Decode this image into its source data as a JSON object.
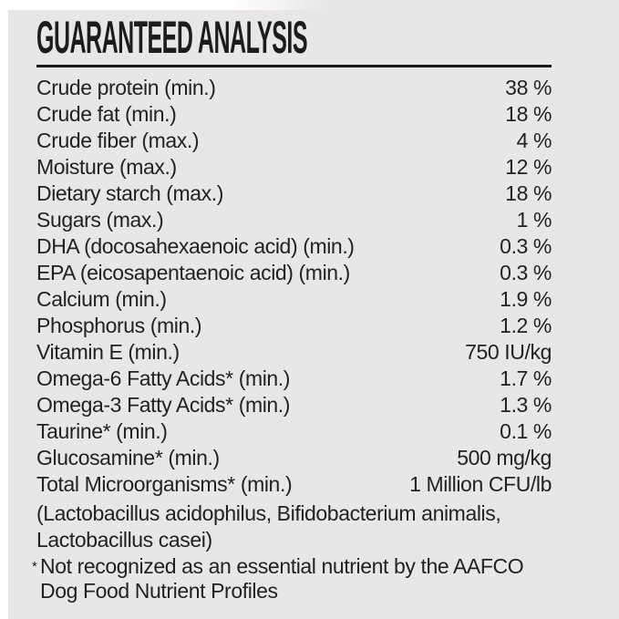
{
  "colors": {
    "page_background": "#ffffff",
    "panel_background": "#e8e7e5",
    "text": "#232220",
    "title": "#1d1c1a",
    "rule": "#1b1a18"
  },
  "header": {
    "title": "GUARANTEED ANALYSIS"
  },
  "table": {
    "rows": [
      {
        "label": "Crude protein (min.)",
        "value": "38 %"
      },
      {
        "label": "Crude fat (min.)",
        "value": "18 %"
      },
      {
        "label": "Crude fiber (max.)",
        "value": "4 %"
      },
      {
        "label": "Moisture (max.)",
        "value": "12 %"
      },
      {
        "label": "Dietary starch (max.)",
        "value": "18 %"
      },
      {
        "label": "Sugars (max.)",
        "value": "1 %"
      },
      {
        "label": "DHA (docosahexaenoic acid) (min.)",
        "value": "0.3 %"
      },
      {
        "label": "EPA (eicosapentaenoic acid) (min.)",
        "value": "0.3 %"
      },
      {
        "label": "Calcium (min.)",
        "value": "1.9 %"
      },
      {
        "label": "Phosphorus (min.)",
        "value": "1.2 %"
      },
      {
        "label": "Vitamin E (min.)",
        "value": "750 IU/kg"
      },
      {
        "label": "Omega-6 Fatty Acids* (min.)",
        "value": "1.7 %"
      },
      {
        "label": "Omega-3 Fatty Acids* (min.)",
        "value": "1.3 %"
      },
      {
        "label": "Taurine* (min.)",
        "value": "0.1 %"
      },
      {
        "label": "Glucosamine* (min.)",
        "value": "500 mg/kg"
      },
      {
        "label": "Total Microorganisms* (min.)",
        "value": "1 Million CFU/lb"
      }
    ]
  },
  "notes": {
    "microorganisms_lines": [
      "(Lactobacillus acidophilus, Bifidobacterium animalis,",
      "Lactobacillus casei)"
    ],
    "footnote_marker": "*",
    "footnote_lines": [
      "Not recognized as an essential nutrient by the AAFCO",
      "Dog Food Nutrient Profiles"
    ]
  }
}
